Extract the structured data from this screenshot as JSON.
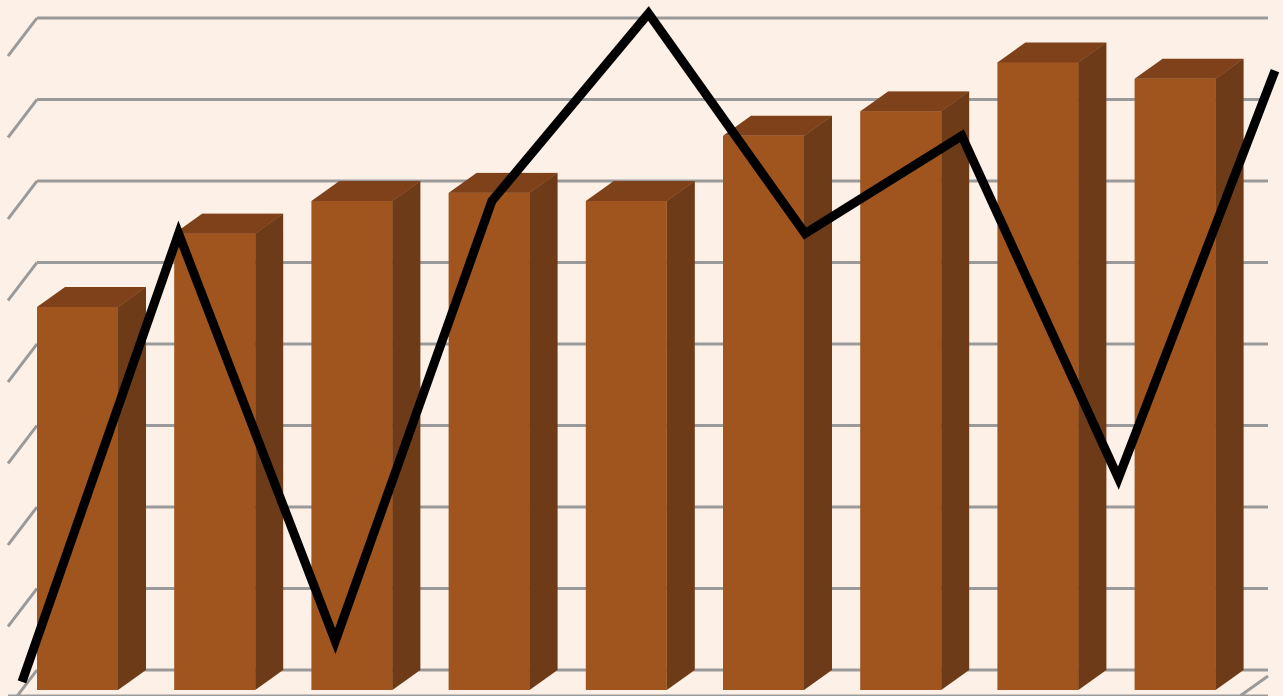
{
  "chart_data": {
    "type": "bar",
    "title": "",
    "xlabel": "",
    "ylabel": "",
    "grid": true,
    "legend": "none",
    "ylim": [
      0,
      8
    ],
    "categories": [
      "",
      "",
      "",
      "",
      "",
      "",
      "",
      "",
      ""
    ],
    "series": [
      {
        "kind": "bar",
        "values": [
          4.7,
          5.6,
          6.0,
          6.1,
          6.0,
          6.8,
          7.1,
          7.7,
          7.5
        ]
      },
      {
        "kind": "line",
        "values": [
          0.1,
          5.6,
          0.6,
          6.0,
          8.3,
          5.6,
          6.8,
          2.6,
          7.6
        ]
      }
    ]
  },
  "colors": {
    "background": "#fdf0e6",
    "bar_front": "#a0551f",
    "bar_side": "#6e3b18",
    "bar_top": "#7e4119",
    "gridline": "#9a9a9a",
    "line": "#000000"
  }
}
